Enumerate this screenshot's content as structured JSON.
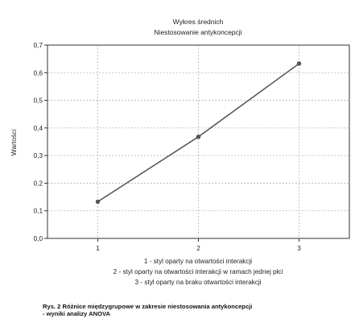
{
  "chart_data": {
    "type": "line",
    "title": "Wykres średnich",
    "subtitle": "Niestosowanie antykoncepcji",
    "xlabel": "",
    "ylabel": "Wartości",
    "x": [
      1,
      2,
      3
    ],
    "x_tick_labels": [
      "1",
      "2",
      "3"
    ],
    "xlim": [
      0.5,
      3.5
    ],
    "ylim": [
      0.0,
      0.7
    ],
    "y_ticks": [
      0.0,
      0.1,
      0.2,
      0.3,
      0.4,
      0.5,
      0.6,
      0.7
    ],
    "y_tick_labels": [
      "0,0",
      "0,1",
      "0,2",
      "0,3",
      "0,4",
      "0,5",
      "0,6",
      "0,7"
    ],
    "grid": true,
    "series": [
      {
        "values": [
          0.133,
          0.368,
          0.633
        ],
        "color": "#5a5a5a"
      }
    ],
    "legend_lines": [
      "1 - styl oparty na otwartości interakcji",
      "2 - styl oparty na otwartości interakcji w ramach jednej płci",
      "3 - styl oparty na braku otwartości interakcji"
    ]
  },
  "caption": {
    "line1": "Rys.  2 Różnice międzygrupowe w zakresie niestosowania antykoncepcji",
    "line2": "- wyniki analizy ANOVA"
  }
}
